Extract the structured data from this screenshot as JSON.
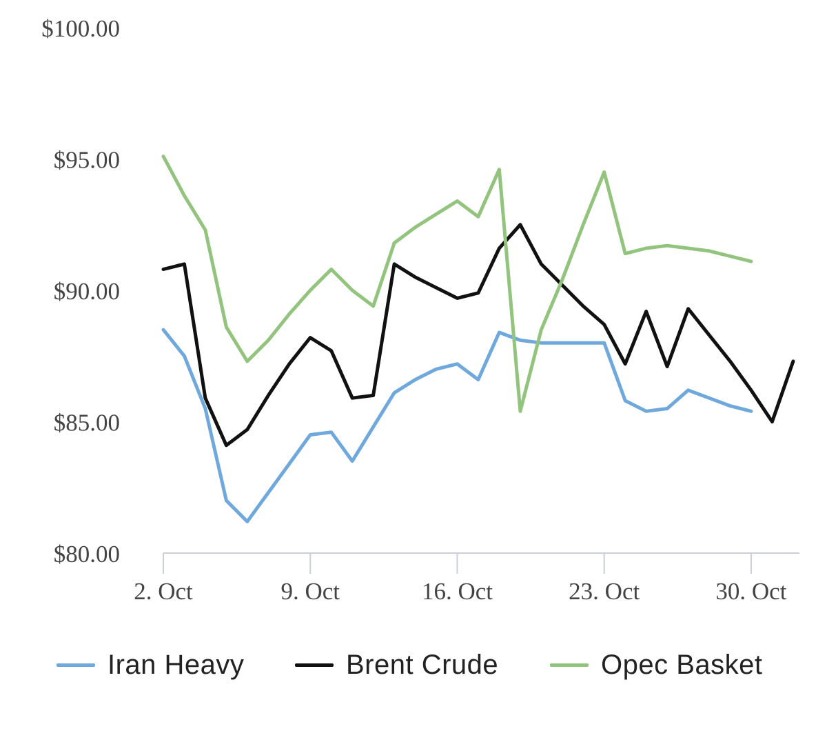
{
  "chart_data": {
    "type": "line",
    "x": [
      2,
      3,
      4,
      5,
      6,
      7,
      8,
      9,
      10,
      11,
      12,
      13,
      14,
      15,
      16,
      17,
      18,
      19,
      20,
      21,
      22,
      23,
      24,
      25,
      26,
      27,
      28,
      29,
      30,
      31,
      32
    ],
    "x_ticks": [
      2,
      9,
      16,
      23,
      30
    ],
    "x_tick_labels": [
      "2. Oct",
      "9. Oct",
      "16. Oct",
      "23. Oct",
      "30. Oct"
    ],
    "xlim": [
      2,
      32.3
    ],
    "y_ticks": [
      80,
      85,
      90,
      95,
      100
    ],
    "y_tick_labels": [
      "$80.00",
      "$85.00",
      "$90.00",
      "$95.00",
      "$100.00"
    ],
    "ylim": [
      80,
      100
    ],
    "grid": false,
    "legend": "bottom",
    "series": [
      {
        "name": "Iran Heavy",
        "color": "#6fa8dc",
        "values": [
          88.5,
          87.5,
          85.5,
          82.0,
          81.2,
          82.3,
          83.4,
          84.5,
          84.6,
          83.5,
          84.8,
          86.1,
          86.6,
          87.0,
          87.2,
          86.6,
          88.4,
          88.1,
          88.0,
          88.0,
          88.0,
          88.0,
          85.8,
          85.4,
          85.5,
          86.2,
          85.9,
          85.6,
          85.4,
          null,
          null
        ]
      },
      {
        "name": "Brent Crude",
        "color": "#111111",
        "values": [
          90.8,
          91.0,
          85.9,
          84.1,
          84.7,
          86.0,
          87.2,
          88.2,
          87.7,
          85.9,
          86.0,
          91.0,
          90.5,
          90.1,
          89.7,
          89.9,
          91.6,
          92.5,
          91.0,
          90.2,
          89.4,
          88.7,
          87.2,
          89.2,
          87.1,
          89.3,
          88.3,
          87.3,
          86.2,
          85.0,
          87.3
        ]
      },
      {
        "name": "Opec Basket",
        "color": "#93c47d",
        "values": [
          95.1,
          93.6,
          92.3,
          88.6,
          87.3,
          88.1,
          89.1,
          90.0,
          90.8,
          90.0,
          89.4,
          91.8,
          92.4,
          92.9,
          93.4,
          92.8,
          94.6,
          85.4,
          88.5,
          90.4,
          92.5,
          94.5,
          91.4,
          91.6,
          91.7,
          91.6,
          91.5,
          91.3,
          91.1,
          null,
          null
        ]
      }
    ]
  }
}
